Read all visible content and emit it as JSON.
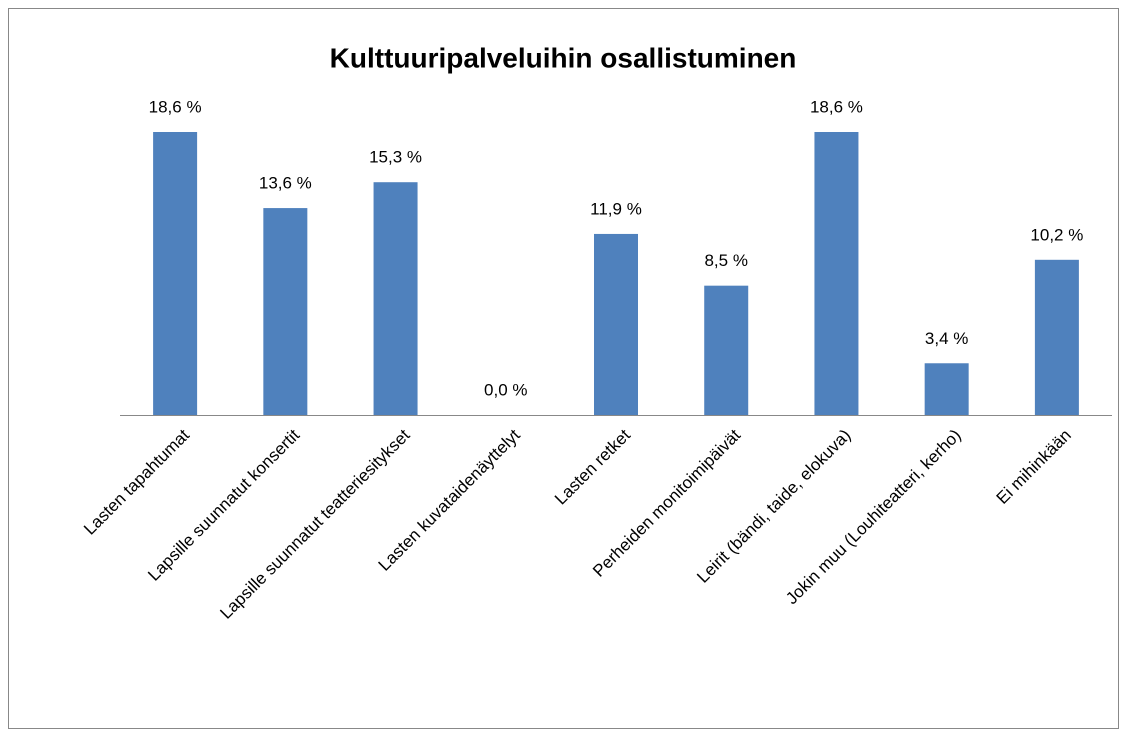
{
  "chart_data": {
    "type": "bar",
    "title": "Kulttuuripalveluihin osallistuminen",
    "categories": [
      "Lasten tapahtumat",
      "Lapsille suunnatut konsertit",
      "Lapsille suunnatut teatteriesitykset",
      "Lasten kuvataidenäyttelyt",
      "Lasten retket",
      "Perheiden monitoimipäivät",
      "Leirit (bändi, taide, elokuva)",
      "Jokin muu (Louhiteatteri, kerho)",
      "Ei mihinkään"
    ],
    "values": [
      18.6,
      13.6,
      15.3,
      0.0,
      11.9,
      8.5,
      18.6,
      3.4,
      10.2
    ],
    "value_labels": [
      "18,6 %",
      "13,6 %",
      "15,3 %",
      "0,0 %",
      "11,9 %",
      "8,5 %",
      "18,6 %",
      "3,4 %",
      "10,2 %"
    ],
    "color": "#4f81bd"
  }
}
